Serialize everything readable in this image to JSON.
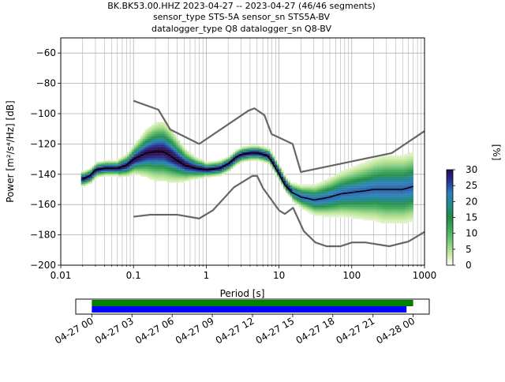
{
  "chart_data": [
    {
      "type": "line",
      "title_lines": [
        "BK.BK53.00.HHZ   2023-04-27 -- 2023-04-27  (46/46 segments)",
        "sensor_type STS-5A sensor_sn STS5A-BV",
        "datalogger_type Q8 datalogger_sn Q8-BV"
      ],
      "xlabel": "Period [s]",
      "ylabel": "Power [m²/s⁴/Hz] [dB]",
      "xscale": "log",
      "xlim": [
        0.01,
        1000
      ],
      "ylim": [
        -200,
        -50
      ],
      "xticks": [
        {
          "value": 0.01,
          "label": "0.01"
        },
        {
          "value": 0.1,
          "label": "0.1"
        },
        {
          "value": 1,
          "label": "1"
        },
        {
          "value": 10,
          "label": "10"
        },
        {
          "value": 100,
          "label": "100"
        },
        {
          "value": 1000,
          "label": "1000"
        }
      ],
      "yticks": [
        {
          "value": -60,
          "label": "−60"
        },
        {
          "value": -80,
          "label": "−80"
        },
        {
          "value": -100,
          "label": "−100"
        },
        {
          "value": -120,
          "label": "−120"
        },
        {
          "value": -140,
          "label": "−140"
        },
        {
          "value": -160,
          "label": "−160"
        },
        {
          "value": -180,
          "label": "−180"
        },
        {
          "value": -200,
          "label": "−200"
        }
      ],
      "grid": true,
      "series": [
        {
          "key": "nhnm",
          "color": "#666666",
          "x": [
            0.1,
            0.22,
            0.32,
            0.8,
            3.8,
            4.6,
            6.3,
            7.9,
            15.4,
            20,
            354.8,
            1000
          ],
          "y": [
            -91.5,
            -97.4,
            -110.5,
            -120,
            -98,
            -96.5,
            -101,
            -113.5,
            -120,
            -138.5,
            -126,
            -111.5
          ]
        },
        {
          "key": "nlnm",
          "color": "#666666",
          "x": [
            0.1,
            0.17,
            0.4,
            0.8,
            1.24,
            2.4,
            4.3,
            5,
            6,
            10,
            12,
            15.6,
            21.9,
            31.6,
            45,
            70,
            101,
            154,
            328,
            600,
            1000
          ],
          "y": [
            -168,
            -166.7,
            -166.7,
            -169.2,
            -163.7,
            -148.6,
            -141.1,
            -141.1,
            -149,
            -163.8,
            -166.2,
            -162.1,
            -177.5,
            -185,
            -187.5,
            -187.5,
            -185,
            -185,
            -187.5,
            -184.4,
            -178
          ]
        },
        {
          "key": "mode",
          "color": "#000000",
          "x": [
            0.02,
            0.025,
            0.03,
            0.04,
            0.06,
            0.08,
            0.1,
            0.15,
            0.2,
            0.25,
            0.3,
            0.4,
            0.5,
            0.7,
            1,
            1.5,
            2,
            2.5,
            3,
            4,
            5,
            6,
            7,
            8,
            10,
            12,
            15,
            20,
            25,
            30,
            40,
            50,
            70,
            100,
            150,
            200,
            300,
            500,
            700
          ],
          "y": [
            -143,
            -141,
            -137,
            -136,
            -136,
            -134,
            -130,
            -126,
            -125,
            -125,
            -127,
            -131,
            -134,
            -136,
            -137,
            -136,
            -133,
            -129,
            -127,
            -126,
            -126,
            -127,
            -128,
            -132,
            -140,
            -147,
            -152,
            -155,
            -156,
            -157,
            -156,
            -155,
            -153,
            -152,
            -151,
            -150,
            -150,
            -150,
            -148
          ]
        }
      ],
      "colorbar": {
        "label": "[%]",
        "min": 0,
        "max": 30,
        "ticks": [
          {
            "value": 0,
            "label": "0"
          },
          {
            "value": 5,
            "label": "5"
          },
          {
            "value": 10,
            "label": "10"
          },
          {
            "value": 15,
            "label": "15"
          },
          {
            "value": 20,
            "label": "20"
          },
          {
            "value": 25,
            "label": "25"
          },
          {
            "value": 30,
            "label": "30"
          }
        ],
        "colors": [
          "#ffffff",
          "#c2e699",
          "#78c679",
          "#41ab5d",
          "#238b45",
          "#238b8e",
          "#2c7fb8",
          "#253494",
          "#2a0a4a"
        ]
      }
    },
    {
      "type": "timeline",
      "xticks": [
        {
          "value": 0,
          "label": "04-27 00"
        },
        {
          "value": 3,
          "label": "04-27 03"
        },
        {
          "value": 6,
          "label": "04-27 06"
        },
        {
          "value": 9,
          "label": "04-27 09"
        },
        {
          "value": 12,
          "label": "04-27 12"
        },
        {
          "value": 15,
          "label": "04-27 15"
        },
        {
          "value": 18,
          "label": "04-27 18"
        },
        {
          "value": 21,
          "label": "04-27 21"
        },
        {
          "value": 24,
          "label": "04-28 00"
        }
      ],
      "xlim_hours": [
        -1.2,
        25.2
      ],
      "bars": [
        {
          "key": "data",
          "color": "#008000",
          "start_hours": 0,
          "end_hours": 24.0
        },
        {
          "key": "used",
          "color": "#0000ff",
          "start_hours": 0,
          "end_hours": 23.5
        }
      ]
    }
  ]
}
